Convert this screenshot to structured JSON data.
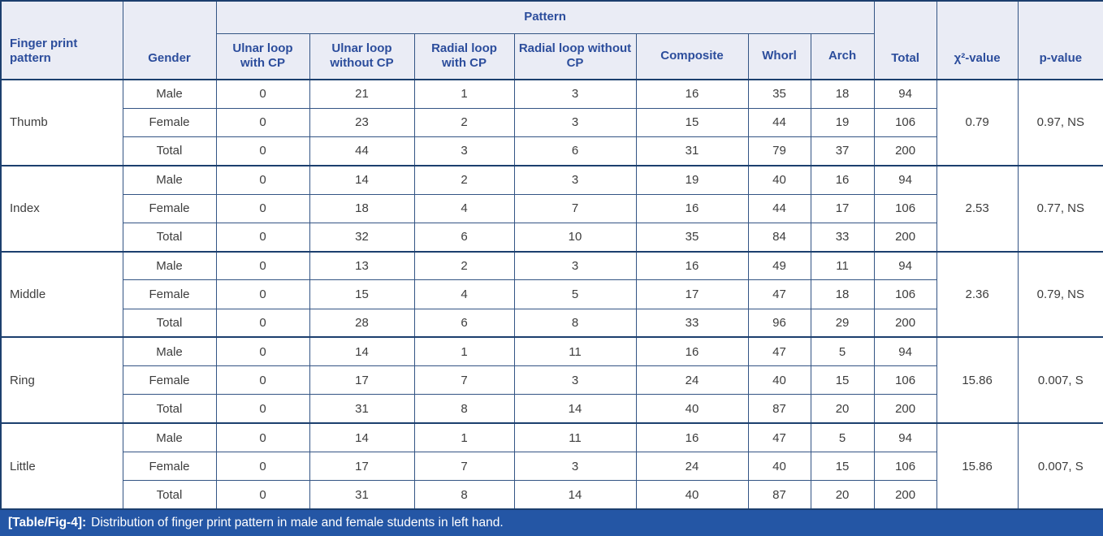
{
  "caption": {
    "label": "[Table/Fig-4]:",
    "text": "Distribution of finger print pattern in male and female students in left hand."
  },
  "table": {
    "corner_header": "Finger print pattern",
    "gender_header": "Gender",
    "pattern_group_header": "Pattern",
    "pattern_columns": [
      "Ulnar loop with CP",
      "Ulnar loop without CP",
      "Radial loop with CP",
      "Radial loop without CP",
      "Composite",
      "Whorl",
      "Arch"
    ],
    "total_header": "Total",
    "chi_header": "χ²-value",
    "p_header": "p-value",
    "sections": [
      {
        "finger": "Thumb",
        "chi_value": "0.79",
        "p_value": "0.97, NS",
        "rows": [
          {
            "gender": "Male",
            "values": [
              0,
              21,
              1,
              3,
              16,
              35,
              18
            ],
            "total": 94
          },
          {
            "gender": "Female",
            "values": [
              0,
              23,
              2,
              3,
              15,
              44,
              19
            ],
            "total": 106
          },
          {
            "gender": "Total",
            "values": [
              0,
              44,
              3,
              6,
              31,
              79,
              37
            ],
            "total": 200
          }
        ]
      },
      {
        "finger": "Index",
        "chi_value": "2.53",
        "p_value": "0.77, NS",
        "rows": [
          {
            "gender": "Male",
            "values": [
              0,
              14,
              2,
              3,
              19,
              40,
              16
            ],
            "total": 94
          },
          {
            "gender": "Female",
            "values": [
              0,
              18,
              4,
              7,
              16,
              44,
              17
            ],
            "total": 106
          },
          {
            "gender": "Total",
            "values": [
              0,
              32,
              6,
              10,
              35,
              84,
              33
            ],
            "total": 200
          }
        ]
      },
      {
        "finger": "Middle",
        "chi_value": "2.36",
        "p_value": "0.79, NS",
        "rows": [
          {
            "gender": "Male",
            "values": [
              0,
              13,
              2,
              3,
              16,
              49,
              11
            ],
            "total": 94
          },
          {
            "gender": "Female",
            "values": [
              0,
              15,
              4,
              5,
              17,
              47,
              18
            ],
            "total": 106
          },
          {
            "gender": "Total",
            "values": [
              0,
              28,
              6,
              8,
              33,
              96,
              29
            ],
            "total": 200
          }
        ]
      },
      {
        "finger": "Ring",
        "chi_value": "15.86",
        "p_value": "0.007, S",
        "rows": [
          {
            "gender": "Male",
            "values": [
              0,
              14,
              1,
              11,
              16,
              47,
              5
            ],
            "total": 94
          },
          {
            "gender": "Female",
            "values": [
              0,
              17,
              7,
              3,
              24,
              40,
              15
            ],
            "total": 106
          },
          {
            "gender": "Total",
            "values": [
              0,
              31,
              8,
              14,
              40,
              87,
              20
            ],
            "total": 200
          }
        ]
      },
      {
        "finger": "Little",
        "chi_value": "15.86",
        "p_value": "0.007, S",
        "rows": [
          {
            "gender": "Male",
            "values": [
              0,
              14,
              1,
              11,
              16,
              47,
              5
            ],
            "total": 94
          },
          {
            "gender": "Female",
            "values": [
              0,
              17,
              7,
              3,
              24,
              40,
              15
            ],
            "total": 106
          },
          {
            "gender": "Total",
            "values": [
              0,
              31,
              8,
              14,
              40,
              87,
              20
            ],
            "total": 200
          }
        ]
      }
    ]
  },
  "chart_data": {
    "type": "table",
    "title": "[Table/Fig-4]: Distribution of finger print pattern in male and female students in left hand.",
    "columns": [
      "Finger print pattern",
      "Gender",
      "Ulnar loop with CP",
      "Ulnar loop without CP",
      "Radial loop with CP",
      "Radial loop without CP",
      "Composite",
      "Whorl",
      "Arch",
      "Total",
      "χ²-value",
      "p-value"
    ],
    "rows": [
      [
        "Thumb",
        "Male",
        0,
        21,
        1,
        3,
        16,
        35,
        18,
        94,
        "0.79",
        "0.97, NS"
      ],
      [
        "Thumb",
        "Female",
        0,
        23,
        2,
        3,
        15,
        44,
        19,
        106,
        "0.79",
        "0.97, NS"
      ],
      [
        "Thumb",
        "Total",
        0,
        44,
        3,
        6,
        31,
        79,
        37,
        200,
        "0.79",
        "0.97, NS"
      ],
      [
        "Index",
        "Male",
        0,
        14,
        2,
        3,
        19,
        40,
        16,
        94,
        "2.53",
        "0.77, NS"
      ],
      [
        "Index",
        "Female",
        0,
        18,
        4,
        7,
        16,
        44,
        17,
        106,
        "2.53",
        "0.77, NS"
      ],
      [
        "Index",
        "Total",
        0,
        32,
        6,
        10,
        35,
        84,
        33,
        200,
        "2.53",
        "0.77, NS"
      ],
      [
        "Middle",
        "Male",
        0,
        13,
        2,
        3,
        16,
        49,
        11,
        94,
        "2.36",
        "0.79, NS"
      ],
      [
        "Middle",
        "Female",
        0,
        15,
        4,
        5,
        17,
        47,
        18,
        106,
        "2.36",
        "0.79, NS"
      ],
      [
        "Middle",
        "Total",
        0,
        28,
        6,
        8,
        33,
        96,
        29,
        200,
        "2.36",
        "0.79, NS"
      ],
      [
        "Ring",
        "Male",
        0,
        14,
        1,
        11,
        16,
        47,
        5,
        94,
        "15.86",
        "0.007, S"
      ],
      [
        "Ring",
        "Female",
        0,
        17,
        7,
        3,
        24,
        40,
        15,
        106,
        "15.86",
        "0.007, S"
      ],
      [
        "Ring",
        "Total",
        0,
        31,
        8,
        14,
        40,
        87,
        20,
        200,
        "15.86",
        "0.007, S"
      ],
      [
        "Little",
        "Male",
        0,
        14,
        1,
        11,
        16,
        47,
        5,
        94,
        "15.86",
        "0.007, S"
      ],
      [
        "Little",
        "Female",
        0,
        17,
        7,
        3,
        24,
        40,
        15,
        106,
        "15.86",
        "0.007, S"
      ],
      [
        "Little",
        "Total",
        0,
        31,
        8,
        14,
        40,
        87,
        20,
        200,
        "15.86",
        "0.007, S"
      ]
    ]
  }
}
